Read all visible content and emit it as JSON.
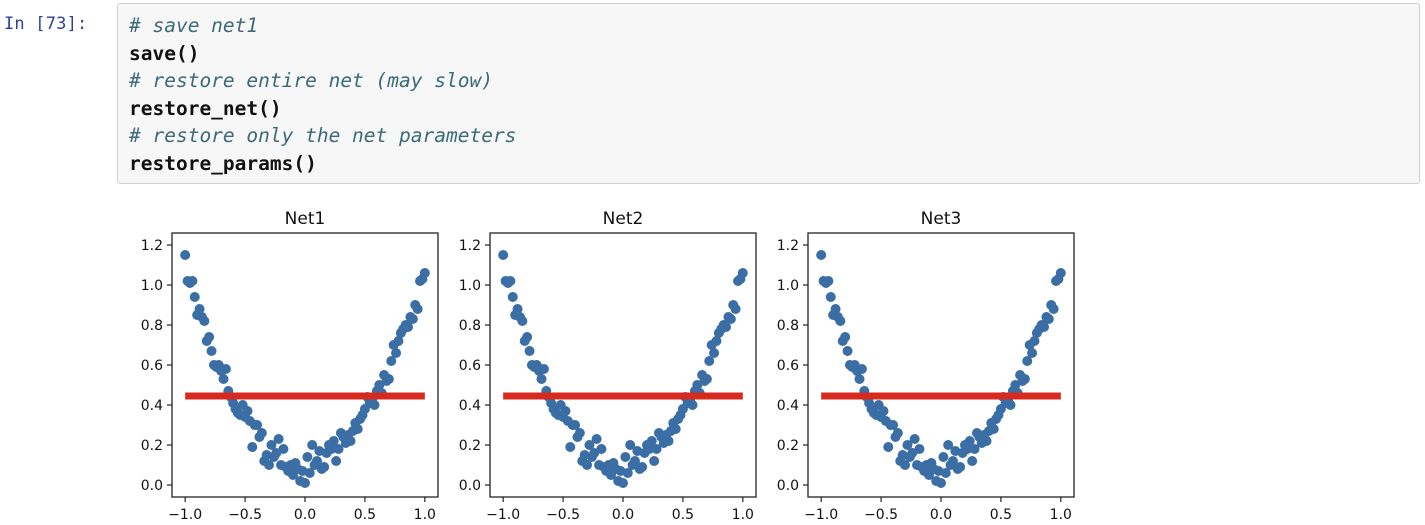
{
  "cell": {
    "prompt": "In [73]:",
    "lines": [
      {
        "kind": "comment",
        "text": "# save net1"
      },
      {
        "kind": "code",
        "text": "save()"
      },
      {
        "kind": "comment",
        "text": "# restore entire net (may slow)"
      },
      {
        "kind": "code",
        "text": "restore_net()"
      },
      {
        "kind": "comment",
        "text": "# restore only the net parameters"
      },
      {
        "kind": "code",
        "text": "restore_params()"
      }
    ]
  },
  "colors": {
    "scatter": "#3a6ea5",
    "fit_line": "#d62a1f",
    "comment": "#3b6a7a",
    "prompt": "#303f9f"
  },
  "chart_data": [
    {
      "type": "scatter",
      "title": "Net1",
      "xlim": [
        -1.0,
        1.0
      ],
      "ylim": [
        0.0,
        1.2
      ],
      "xticks": [
        "-1.0",
        "-0.5",
        "0.0",
        "0.5",
        "1.0"
      ],
      "yticks": [
        "0.0",
        "0.2",
        "0.4",
        "0.6",
        "0.8",
        "1.0",
        "1.2"
      ],
      "grid": false,
      "series": [
        {
          "type": "scatter",
          "x": [
            -1.0,
            -0.98,
            -0.96,
            -0.94,
            -0.92,
            -0.9,
            -0.88,
            -0.86,
            -0.84,
            -0.82,
            -0.8,
            -0.78,
            -0.76,
            -0.74,
            -0.72,
            -0.7,
            -0.68,
            -0.66,
            -0.64,
            -0.62,
            -0.6,
            -0.58,
            -0.56,
            -0.54,
            -0.52,
            -0.5,
            -0.48,
            -0.46,
            -0.44,
            -0.42,
            -0.4,
            -0.38,
            -0.36,
            -0.34,
            -0.32,
            -0.3,
            -0.28,
            -0.26,
            -0.24,
            -0.22,
            -0.2,
            -0.18,
            -0.16,
            -0.14,
            -0.12,
            -0.1,
            -0.08,
            -0.06,
            -0.04,
            -0.02,
            0.0,
            0.02,
            0.04,
            0.06,
            0.08,
            0.1,
            0.12,
            0.14,
            0.16,
            0.18,
            0.2,
            0.22,
            0.24,
            0.26,
            0.28,
            0.3,
            0.32,
            0.34,
            0.36,
            0.38,
            0.4,
            0.42,
            0.44,
            0.46,
            0.48,
            0.5,
            0.52,
            0.54,
            0.56,
            0.58,
            0.6,
            0.62,
            0.64,
            0.66,
            0.68,
            0.7,
            0.72,
            0.74,
            0.76,
            0.78,
            0.8,
            0.82,
            0.84,
            0.86,
            0.88,
            0.9,
            0.92,
            0.94,
            0.96,
            0.98,
            1.0
          ],
          "y": [
            1.15,
            1.02,
            1.01,
            1.02,
            0.94,
            0.85,
            0.88,
            0.84,
            0.82,
            0.72,
            0.74,
            0.67,
            0.6,
            0.59,
            0.6,
            0.57,
            0.53,
            0.58,
            0.47,
            0.44,
            0.41,
            0.38,
            0.36,
            0.35,
            0.4,
            0.34,
            0.37,
            0.32,
            0.19,
            0.3,
            0.3,
            0.24,
            0.26,
            0.12,
            0.15,
            0.1,
            0.2,
            0.14,
            0.16,
            0.23,
            0.1,
            0.18,
            0.09,
            0.07,
            0.1,
            0.05,
            0.11,
            0.08,
            0.02,
            0.07,
            0.01,
            0.14,
            0.06,
            0.2,
            0.1,
            0.12,
            0.17,
            0.08,
            0.09,
            0.16,
            0.2,
            0.18,
            0.22,
            0.12,
            0.18,
            0.26,
            0.24,
            0.21,
            0.25,
            0.22,
            0.27,
            0.31,
            0.28,
            0.33,
            0.35,
            0.38,
            0.44,
            0.41,
            0.42,
            0.4,
            0.47,
            0.5,
            0.46,
            0.55,
            0.52,
            0.53,
            0.62,
            0.7,
            0.66,
            0.72,
            0.76,
            0.78,
            0.8,
            0.79,
            0.84,
            0.83,
            0.9,
            0.88,
            1.02,
            1.03,
            1.06
          ]
        },
        {
          "type": "line",
          "x": [
            -1.0,
            1.0
          ],
          "y": [
            0.445,
            0.445
          ]
        }
      ]
    },
    {
      "type": "scatter",
      "title": "Net2",
      "xlim": [
        -1.0,
        1.0
      ],
      "ylim": [
        0.0,
        1.2
      ],
      "xticks": [
        "-1.0",
        "-0.5",
        "0.0",
        "0.5",
        "1.0"
      ],
      "yticks": [
        "0.0",
        "0.2",
        "0.4",
        "0.6",
        "0.8",
        "1.0",
        "1.2"
      ],
      "grid": false,
      "series": [
        {
          "type": "scatter",
          "x": [
            -1.0,
            -0.98,
            -0.96,
            -0.94,
            -0.92,
            -0.9,
            -0.88,
            -0.86,
            -0.84,
            -0.82,
            -0.8,
            -0.78,
            -0.76,
            -0.74,
            -0.72,
            -0.7,
            -0.68,
            -0.66,
            -0.64,
            -0.62,
            -0.6,
            -0.58,
            -0.56,
            -0.54,
            -0.52,
            -0.5,
            -0.48,
            -0.46,
            -0.44,
            -0.42,
            -0.4,
            -0.38,
            -0.36,
            -0.34,
            -0.32,
            -0.3,
            -0.28,
            -0.26,
            -0.24,
            -0.22,
            -0.2,
            -0.18,
            -0.16,
            -0.14,
            -0.12,
            -0.1,
            -0.08,
            -0.06,
            -0.04,
            -0.02,
            0.0,
            0.02,
            0.04,
            0.06,
            0.08,
            0.1,
            0.12,
            0.14,
            0.16,
            0.18,
            0.2,
            0.22,
            0.24,
            0.26,
            0.28,
            0.3,
            0.32,
            0.34,
            0.36,
            0.38,
            0.4,
            0.42,
            0.44,
            0.46,
            0.48,
            0.5,
            0.52,
            0.54,
            0.56,
            0.58,
            0.6,
            0.62,
            0.64,
            0.66,
            0.68,
            0.7,
            0.72,
            0.74,
            0.76,
            0.78,
            0.8,
            0.82,
            0.84,
            0.86,
            0.88,
            0.9,
            0.92,
            0.94,
            0.96,
            0.98,
            1.0
          ],
          "y": [
            1.15,
            1.02,
            1.01,
            1.02,
            0.94,
            0.85,
            0.88,
            0.84,
            0.82,
            0.72,
            0.74,
            0.67,
            0.6,
            0.59,
            0.6,
            0.57,
            0.53,
            0.58,
            0.47,
            0.44,
            0.41,
            0.38,
            0.36,
            0.35,
            0.4,
            0.34,
            0.37,
            0.32,
            0.19,
            0.3,
            0.3,
            0.24,
            0.26,
            0.12,
            0.15,
            0.1,
            0.2,
            0.14,
            0.16,
            0.23,
            0.1,
            0.18,
            0.09,
            0.07,
            0.1,
            0.05,
            0.11,
            0.08,
            0.02,
            0.07,
            0.01,
            0.14,
            0.06,
            0.2,
            0.1,
            0.12,
            0.17,
            0.08,
            0.09,
            0.16,
            0.2,
            0.18,
            0.22,
            0.12,
            0.18,
            0.26,
            0.24,
            0.21,
            0.25,
            0.22,
            0.27,
            0.31,
            0.28,
            0.33,
            0.35,
            0.38,
            0.44,
            0.41,
            0.42,
            0.4,
            0.47,
            0.5,
            0.46,
            0.55,
            0.52,
            0.53,
            0.62,
            0.7,
            0.66,
            0.72,
            0.76,
            0.78,
            0.8,
            0.79,
            0.84,
            0.83,
            0.9,
            0.88,
            1.02,
            1.03,
            1.06
          ]
        },
        {
          "type": "line",
          "x": [
            -1.0,
            1.0
          ],
          "y": [
            0.445,
            0.445
          ]
        }
      ]
    },
    {
      "type": "scatter",
      "title": "Net3",
      "xlim": [
        -1.0,
        1.0
      ],
      "ylim": [
        0.0,
        1.2
      ],
      "xticks": [
        "-1.0",
        "-0.5",
        "0.0",
        "0.5",
        "1.0"
      ],
      "yticks": [
        "0.0",
        "0.2",
        "0.4",
        "0.6",
        "0.8",
        "1.0",
        "1.2"
      ],
      "grid": false,
      "series": [
        {
          "type": "scatter",
          "x": [
            -1.0,
            -0.98,
            -0.96,
            -0.94,
            -0.92,
            -0.9,
            -0.88,
            -0.86,
            -0.84,
            -0.82,
            -0.8,
            -0.78,
            -0.76,
            -0.74,
            -0.72,
            -0.7,
            -0.68,
            -0.66,
            -0.64,
            -0.62,
            -0.6,
            -0.58,
            -0.56,
            -0.54,
            -0.52,
            -0.5,
            -0.48,
            -0.46,
            -0.44,
            -0.42,
            -0.4,
            -0.38,
            -0.36,
            -0.34,
            -0.32,
            -0.3,
            -0.28,
            -0.26,
            -0.24,
            -0.22,
            -0.2,
            -0.18,
            -0.16,
            -0.14,
            -0.12,
            -0.1,
            -0.08,
            -0.06,
            -0.04,
            -0.02,
            0.0,
            0.02,
            0.04,
            0.06,
            0.08,
            0.1,
            0.12,
            0.14,
            0.16,
            0.18,
            0.2,
            0.22,
            0.24,
            0.26,
            0.28,
            0.3,
            0.32,
            0.34,
            0.36,
            0.38,
            0.4,
            0.42,
            0.44,
            0.46,
            0.48,
            0.5,
            0.52,
            0.54,
            0.56,
            0.58,
            0.6,
            0.62,
            0.64,
            0.66,
            0.68,
            0.7,
            0.72,
            0.74,
            0.76,
            0.78,
            0.8,
            0.82,
            0.84,
            0.86,
            0.88,
            0.9,
            0.92,
            0.94,
            0.96,
            0.98,
            1.0
          ],
          "y": [
            1.15,
            1.02,
            1.01,
            1.02,
            0.94,
            0.85,
            0.88,
            0.84,
            0.82,
            0.72,
            0.74,
            0.67,
            0.6,
            0.59,
            0.6,
            0.57,
            0.53,
            0.58,
            0.47,
            0.44,
            0.41,
            0.38,
            0.36,
            0.35,
            0.4,
            0.34,
            0.37,
            0.32,
            0.19,
            0.3,
            0.3,
            0.24,
            0.26,
            0.12,
            0.15,
            0.1,
            0.2,
            0.14,
            0.16,
            0.23,
            0.1,
            0.18,
            0.09,
            0.07,
            0.1,
            0.05,
            0.11,
            0.08,
            0.02,
            0.07,
            0.01,
            0.14,
            0.06,
            0.2,
            0.1,
            0.12,
            0.17,
            0.08,
            0.09,
            0.16,
            0.2,
            0.18,
            0.22,
            0.12,
            0.18,
            0.26,
            0.24,
            0.21,
            0.25,
            0.22,
            0.27,
            0.31,
            0.28,
            0.33,
            0.35,
            0.38,
            0.44,
            0.41,
            0.42,
            0.4,
            0.47,
            0.5,
            0.46,
            0.55,
            0.52,
            0.53,
            0.62,
            0.7,
            0.66,
            0.72,
            0.76,
            0.78,
            0.8,
            0.79,
            0.84,
            0.83,
            0.9,
            0.88,
            1.02,
            1.03,
            1.06
          ]
        },
        {
          "type": "line",
          "x": [
            -1.0,
            1.0
          ],
          "y": [
            0.445,
            0.445
          ]
        }
      ]
    }
  ]
}
